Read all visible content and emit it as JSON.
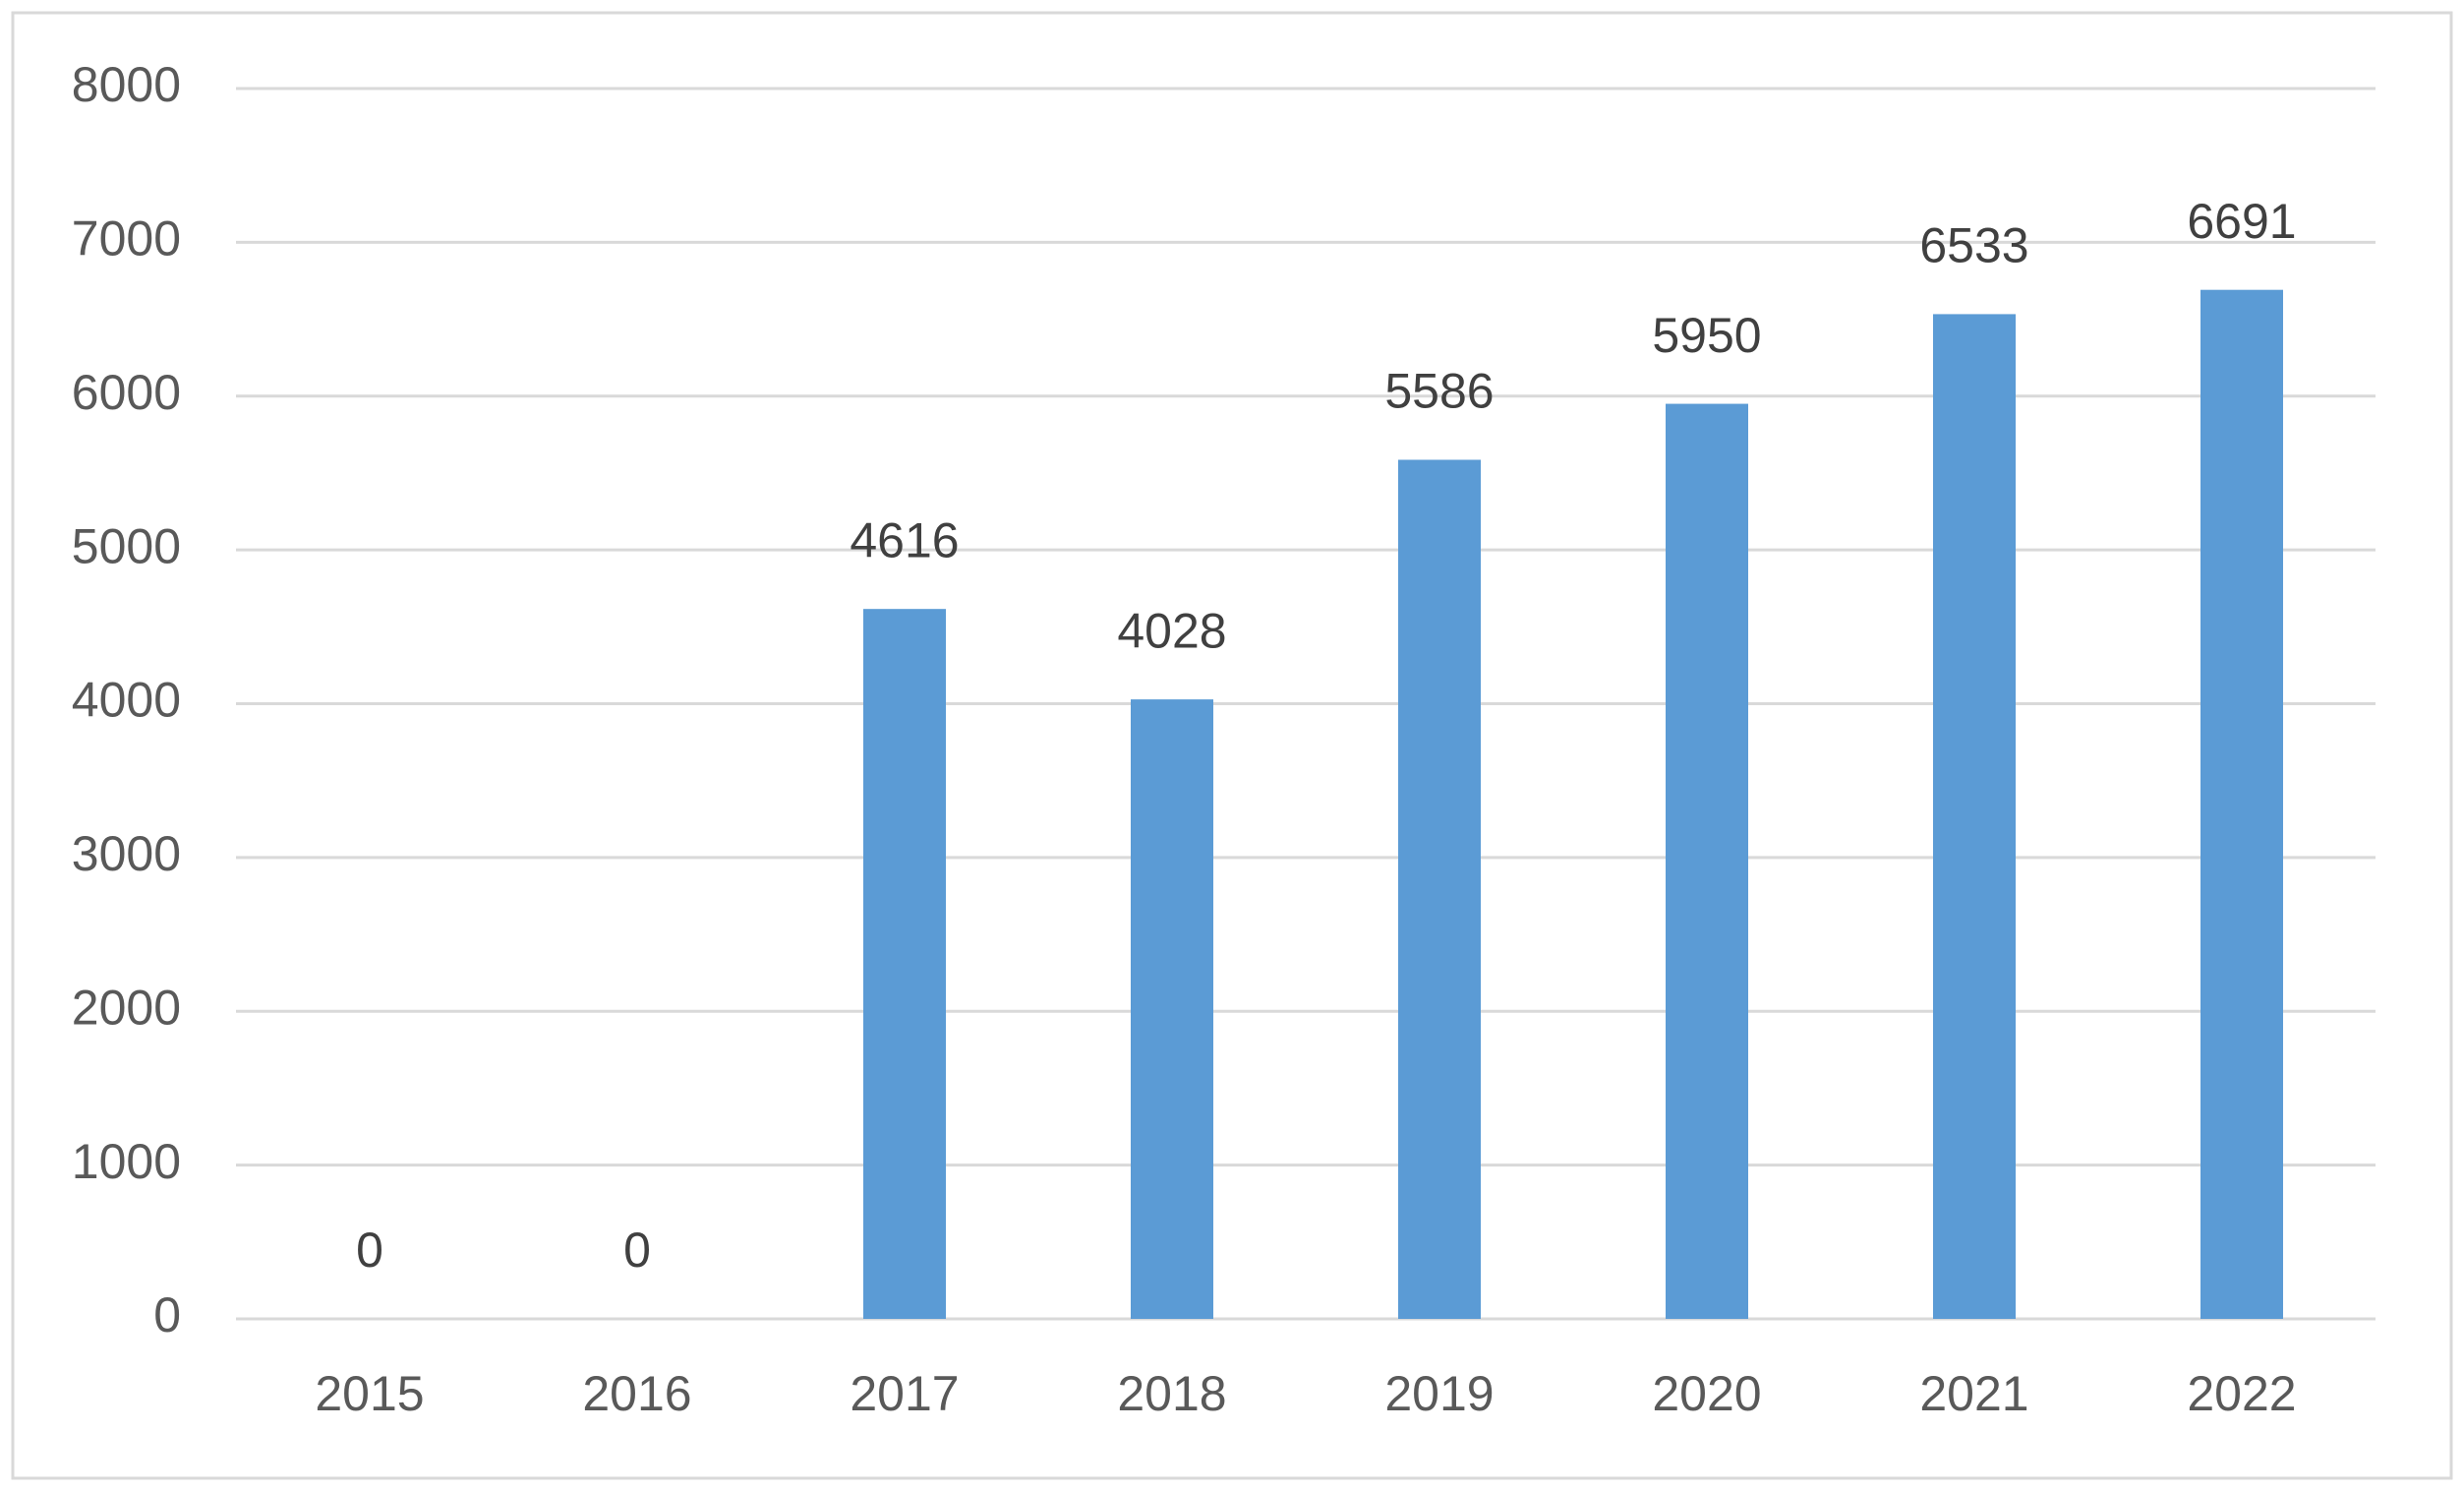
{
  "chart_data": {
    "type": "bar",
    "categories": [
      "2015",
      "2016",
      "2017",
      "2018",
      "2019",
      "2020",
      "2021",
      "2022"
    ],
    "values": [
      0,
      0,
      4616,
      4028,
      5586,
      5950,
      6533,
      6691
    ],
    "color": "#5b9bd5",
    "ylim": [
      0,
      8000
    ],
    "yticks": [
      0,
      1000,
      2000,
      3000,
      4000,
      5000,
      6000,
      7000,
      8000
    ],
    "grid": true
  }
}
